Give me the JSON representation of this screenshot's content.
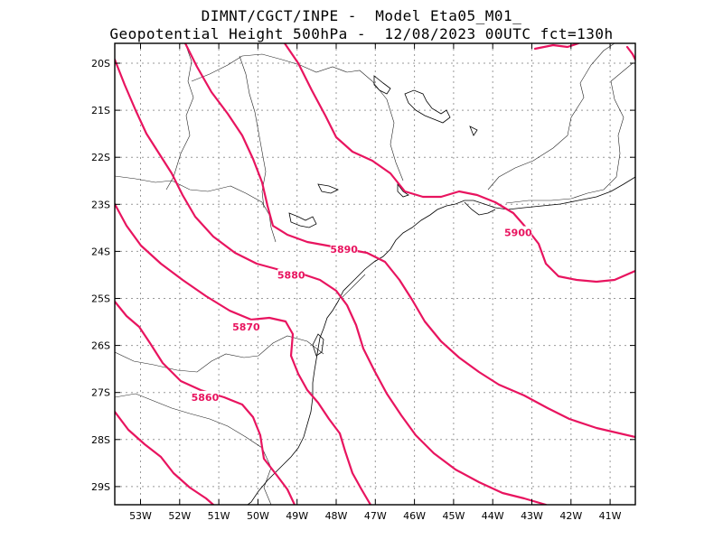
{
  "header": {
    "line1": "DIMNT/CGCT/INPE -  Model Eta05_M01_",
    "line2": "Geopotential Height 500hPa -  12/08/2023 00UTC fct=130h"
  },
  "map": {
    "lat_labels": [
      "20S",
      "21S",
      "22S",
      "23S",
      "24S",
      "25S",
      "26S",
      "27S",
      "28S",
      "29S"
    ],
    "lon_labels": [
      "53W",
      "52W",
      "51W",
      "50W",
      "49W",
      "48W",
      "47W",
      "46W",
      "45W",
      "44W",
      "43W",
      "42W",
      "41W"
    ],
    "contour_color": "#e8145f",
    "contour_labels": [
      {
        "text": "5900",
        "lon": -43.35,
        "lat": -23.6
      },
      {
        "text": "5890",
        "lon": -47.8,
        "lat": -23.95
      },
      {
        "text": "5880",
        "lon": -49.15,
        "lat": -24.5
      },
      {
        "text": "5870",
        "lon": -50.3,
        "lat": -25.6
      },
      {
        "text": "5860",
        "lon": -51.35,
        "lat": -27.1
      }
    ]
  }
}
